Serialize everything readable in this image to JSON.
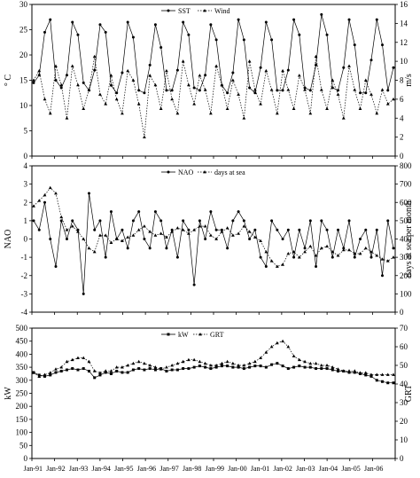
{
  "chart_data": [
    {
      "type": "line",
      "legend": [
        "SST",
        "Wind"
      ],
      "ylabel_left": "° C",
      "ylabel_right": "m/s",
      "ylim_left": [
        0,
        30
      ],
      "ylim_right": [
        0,
        16
      ],
      "yticks_left": [
        "0",
        "5",
        "10",
        "15",
        "20",
        "25",
        "30"
      ],
      "yticks_right": [
        "0",
        "2",
        "4",
        "6",
        "8",
        "10",
        "12",
        "14",
        "16"
      ],
      "x_start": "Jan-91",
      "x_step_months": 3,
      "series": [
        {
          "name": "SST",
          "axis": "left",
          "marker": "circle",
          "values": [
            14.5,
            16,
            24.5,
            27,
            15,
            13.5,
            16,
            26.5,
            24,
            14.5,
            13,
            17,
            26,
            24.5,
            14,
            12.5,
            16.5,
            26.5,
            23.5,
            13,
            12.5,
            18,
            26,
            21.5,
            13,
            13,
            17,
            26.5,
            24,
            13.5,
            13,
            16,
            26,
            23,
            14,
            12.5,
            16.5,
            27,
            23,
            13.5,
            12.5,
            17.5,
            26.5,
            23,
            13,
            13,
            17,
            27,
            24,
            13.5,
            13,
            18,
            28,
            24,
            13.5,
            13,
            17.5,
            27,
            22,
            12.5,
            12.5,
            19,
            27,
            22,
            13,
            17.5
          ]
        },
        {
          "name": "Wind",
          "axis": "right",
          "marker": "triangle",
          "values": [
            8,
            9,
            6,
            4.5,
            9.5,
            7.5,
            4,
            9.5,
            7.5,
            5,
            7,
            10.5,
            6.5,
            5.5,
            8.5,
            6,
            4.5,
            9,
            8,
            5.5,
            2,
            8.5,
            7.5,
            5,
            9,
            6,
            4.5,
            10,
            7.5,
            5.5,
            8.5,
            7,
            4.5,
            9.5,
            7.5,
            5,
            8,
            6.5,
            4,
            10,
            7,
            5.5,
            9,
            7,
            4.5,
            9,
            7,
            5,
            8.5,
            7,
            4.5,
            10.5,
            7,
            5,
            8,
            6.5,
            4,
            9.5,
            7,
            5,
            8,
            6.5,
            4.5,
            7,
            5.5,
            6
          ]
        }
      ]
    },
    {
      "type": "line",
      "legend": [
        "NAO",
        "days at sea"
      ],
      "ylabel_left": "NAO",
      "ylabel_right": "days at sea per month",
      "ylim_left": [
        -4,
        4
      ],
      "ylim_right": [
        0,
        800
      ],
      "yticks_left": [
        "-4",
        "-3",
        "-2",
        "-1",
        "0",
        "1",
        "2",
        "3",
        "4"
      ],
      "yticks_right": [
        "0",
        "100",
        "200",
        "300",
        "400",
        "500",
        "600",
        "700",
        "800"
      ],
      "x_start": "Jan-91",
      "x_step_months": 3,
      "series": [
        {
          "name": "NAO",
          "axis": "left",
          "marker": "circle",
          "values": [
            1,
            0.5,
            2,
            0,
            -1.5,
            1,
            0,
            1,
            0.5,
            -3,
            2.5,
            0.5,
            1,
            -1,
            1.5,
            0,
            0.5,
            -0.5,
            1,
            1.5,
            0,
            -0.5,
            1.5,
            1,
            -0.5,
            0.5,
            -1,
            1,
            0.5,
            -2.5,
            1,
            0,
            1.5,
            0.5,
            0.5,
            -0.5,
            1,
            1.5,
            1,
            0,
            0.5,
            -1,
            -1.5,
            1,
            0.5,
            0,
            0.5,
            -1,
            0.5,
            -0.5,
            1,
            -1.5,
            1,
            0.5,
            -1,
            0.5,
            -0.5,
            1,
            -1,
            0,
            0.5,
            -1,
            0.5,
            -2,
            1,
            -0.5
          ]
        },
        {
          "name": "days at sea",
          "axis": "right",
          "marker": "triangle",
          "values": [
            580,
            610,
            640,
            680,
            650,
            520,
            450,
            470,
            440,
            400,
            350,
            330,
            420,
            420,
            380,
            400,
            390,
            410,
            420,
            450,
            470,
            440,
            420,
            430,
            410,
            440,
            460,
            450,
            430,
            450,
            470,
            470,
            420,
            400,
            440,
            460,
            420,
            430,
            470,
            440,
            410,
            390,
            330,
            280,
            250,
            260,
            320,
            330,
            300,
            330,
            360,
            310,
            350,
            360,
            330,
            310,
            340,
            340,
            320,
            320,
            350,
            330,
            310,
            290,
            280,
            300
          ]
        }
      ]
    },
    {
      "type": "line",
      "legend": [
        "kW",
        "GRT"
      ],
      "ylabel_left": "kW",
      "ylabel_right": "GRT",
      "ylim_left": [
        0,
        500
      ],
      "ylim_right": [
        0,
        70
      ],
      "yticks_left": [
        "0",
        "50",
        "100",
        "150",
        "200",
        "250",
        "300",
        "350",
        "400",
        "450",
        "500"
      ],
      "yticks_right": [
        "0",
        "10",
        "20",
        "30",
        "40",
        "50",
        "60",
        "70"
      ],
      "x_start": "Jan-91",
      "x_step_months": 3,
      "series": [
        {
          "name": "kW",
          "axis": "left",
          "marker": "square",
          "values": [
            330,
            320,
            315,
            320,
            330,
            335,
            340,
            345,
            340,
            345,
            335,
            310,
            320,
            330,
            325,
            335,
            330,
            330,
            340,
            345,
            340,
            345,
            340,
            345,
            335,
            340,
            340,
            345,
            345,
            350,
            355,
            350,
            345,
            350,
            355,
            355,
            350,
            350,
            345,
            350,
            355,
            355,
            350,
            360,
            365,
            355,
            345,
            350,
            355,
            350,
            350,
            345,
            345,
            345,
            340,
            335,
            335,
            330,
            330,
            325,
            320,
            315,
            300,
            295,
            290,
            290
          ]
        },
        {
          "name": "GRT",
          "axis": "right",
          "marker": "triangle",
          "values": [
            46,
            44,
            45,
            46,
            48,
            49,
            52,
            53,
            54,
            54,
            52,
            47,
            46,
            47,
            47,
            49,
            49,
            50,
            51,
            52,
            51,
            50,
            49,
            48,
            49,
            50,
            51,
            52,
            53,
            53,
            52,
            51,
            50,
            50,
            51,
            52,
            51,
            50,
            50,
            51,
            52,
            54,
            57,
            60,
            62,
            63,
            60,
            55,
            53,
            52,
            51,
            51,
            50,
            50,
            49,
            48,
            47,
            47,
            47,
            46,
            46,
            45,
            45,
            45,
            45,
            45
          ]
        }
      ]
    }
  ],
  "x_tick_labels": [
    "Jan-91",
    "Jan-92",
    "Jan-93",
    "Jan-94",
    "Jan-95",
    "Jan-96",
    "Jan-97",
    "Jan-98",
    "Jan-99",
    "Jan-00",
    "Jan-01",
    "Jan-02",
    "Jan-03",
    "Jan-04",
    "Jan-05",
    "Jan-06"
  ]
}
